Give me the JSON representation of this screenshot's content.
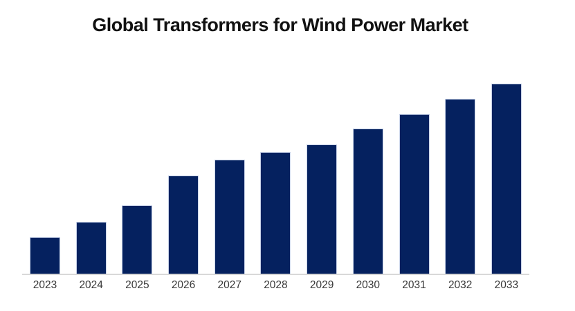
{
  "page": {
    "background": "#ffffff"
  },
  "colors": {
    "bar_fill": "#05215f",
    "bar_edge": "#c7d2e8",
    "axis_line": "#d8d8d8",
    "title_text": "#111111",
    "tick_text": "#383838"
  },
  "chart_data": {
    "type": "bar",
    "title": "Global Transformers for Wind Power Market",
    "categories": [
      "2023",
      "2024",
      "2025",
      "2026",
      "2027",
      "2028",
      "2029",
      "2030",
      "2031",
      "2032",
      "2033"
    ],
    "values": [
      19.6,
      27.7,
      36.2,
      51.8,
      60.1,
      64.0,
      68.0,
      76.6,
      84.1,
      92.1,
      100.0
    ],
    "values_note": "No y-axis, gridlines, or data labels are shown in the chart; values are relative bar heights as a percent of the tallest (2033) bar.",
    "xlabel": "",
    "ylabel": "",
    "ylim": [
      0,
      100
    ],
    "grid": false,
    "legend": false,
    "y_axis_visible": false,
    "data_labels_visible": false,
    "bar_color": "#05215f"
  }
}
